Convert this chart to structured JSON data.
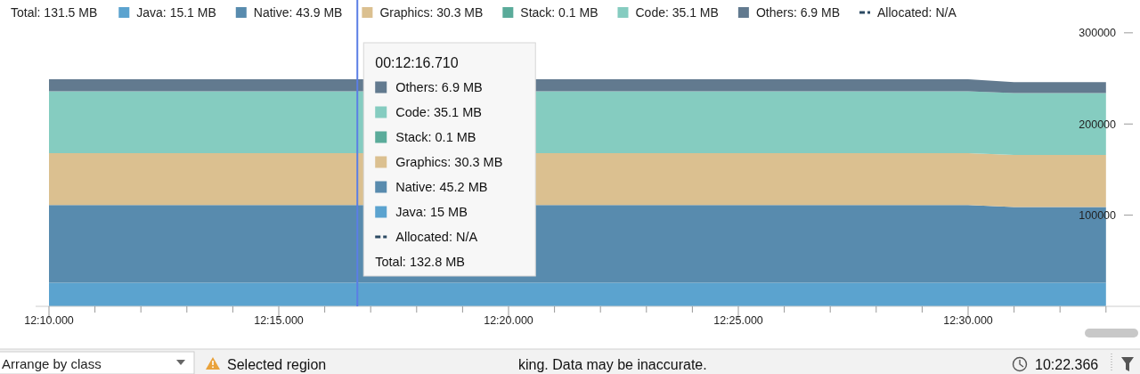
{
  "chart_data": {
    "type": "area",
    "stacked": true,
    "legend": "top",
    "legend_title": "Total: 131.5 MB",
    "categories": [
      "12:10.000",
      null,
      null,
      null,
      null,
      "12:15.000",
      null,
      null,
      null,
      null,
      "12:20.000",
      null,
      null,
      null,
      null,
      "12:25.000",
      null,
      null,
      null,
      null,
      "12:30.000",
      null,
      null,
      null
    ],
    "ylim": [
      0,
      336000
    ],
    "yticks": [
      100000,
      200000,
      300000
    ],
    "series": [
      {
        "name": "Java: 15.1 MB",
        "color": "#5ba3cf",
        "values": [
          26000,
          26000,
          26000,
          26000,
          26000,
          26000,
          26000,
          26000,
          26000,
          26000,
          26000,
          26000,
          26000,
          26000,
          26000,
          26000,
          26000,
          26000,
          26000,
          26000,
          26000,
          26000,
          26000,
          26000
        ]
      },
      {
        "name": "Native: 43.9 MB",
        "color": "#588bae",
        "values": [
          85000,
          85000,
          85000,
          85000,
          85000,
          85000,
          85000,
          null,
          null,
          null,
          null,
          85000,
          85000,
          85000,
          85000,
          85000,
          85000,
          85000,
          85000,
          85000,
          85000,
          83000,
          83000,
          83000
        ]
      },
      {
        "name": "Graphics: 30.3 MB",
        "color": "#dbc090",
        "values": [
          57000,
          57000,
          57000,
          57000,
          57000,
          57000,
          57000,
          null,
          null,
          null,
          null,
          57000,
          57000,
          57000,
          57000,
          57000,
          57000,
          57000,
          57000,
          57000,
          57000,
          57000,
          57000,
          57000
        ]
      },
      {
        "name": "Stack: 0.1 MB",
        "color": "#5aab9a",
        "values": [
          null,
          null,
          null,
          null,
          null,
          null,
          null,
          null,
          null,
          null,
          null,
          null,
          null,
          null,
          null,
          null,
          null,
          null,
          null,
          null,
          null,
          null,
          null,
          null
        ]
      },
      {
        "name": "Code: 35.1 MB",
        "color": "#85ccc0",
        "values": [
          68000,
          68000,
          68000,
          68000,
          68000,
          68000,
          68000,
          null,
          null,
          null,
          null,
          68000,
          68000,
          68000,
          68000,
          68000,
          68000,
          68000,
          68000,
          68000,
          68000,
          68000,
          68000,
          68000
        ]
      },
      {
        "name": "Others: 6.9 MB",
        "color": "#627a8f",
        "values": [
          13000,
          13000,
          13000,
          13000,
          13000,
          13000,
          13000,
          null,
          null,
          null,
          null,
          13000,
          13000,
          13000,
          13000,
          13000,
          13000,
          13000,
          13000,
          13000,
          13000,
          12000,
          12000,
          12000
        ]
      },
      {
        "name": "Allocated: N/A",
        "type": "line",
        "line_style": "dashed",
        "color": "#2c4a63",
        "values": [
          null,
          null,
          null,
          null,
          null,
          null,
          null,
          null,
          null,
          null,
          null,
          null,
          null,
          null,
          null,
          null,
          null,
          null,
          null,
          null,
          null,
          null,
          null,
          null
        ]
      }
    ],
    "annotations": [
      "00:12:16.710",
      "Others: 6.9 MB",
      "Code: 35.1 MB",
      "Stack: 0.1 MB",
      "Graphics: 30.3 MB",
      "Native: 45.2 MB",
      "Java: 15 MB",
      "Allocated: N/A",
      "Total: 132.8 MB",
      "Arrange by class",
      "Selected region",
      "king. Data may be inaccurate.",
      "10:22.366"
    ]
  }
}
